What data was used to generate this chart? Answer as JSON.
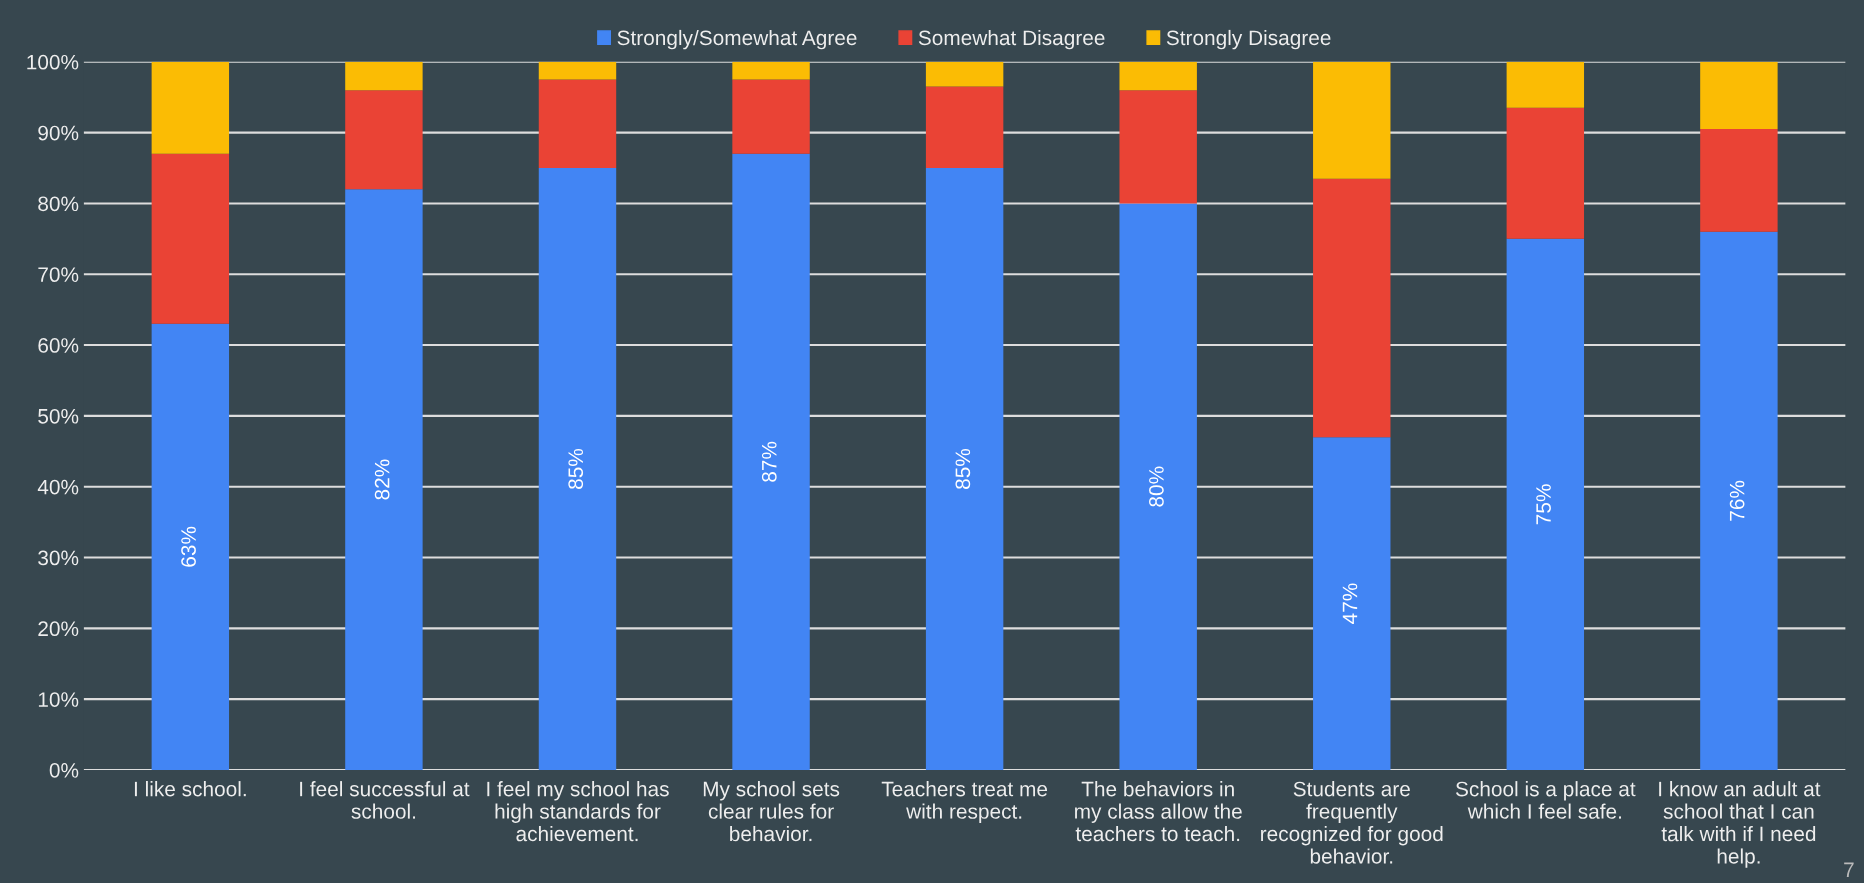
{
  "chart_data": {
    "type": "bar",
    "stacked": true,
    "categories": [
      "I like school.",
      "I feel successful at\nschool.",
      "I feel my school has\nhigh standards for\nachievement.",
      "My school sets\nclear rules for\nbehavior.",
      "Teachers treat me\nwith respect.",
      "The behaviors in\nmy class allow the\nteachers to teach.",
      "Students are\nfrequently\nrecognized for good\nbehavior.",
      "School is a place at\nwhich I feel safe.",
      "I know an adult at\nschool that I can\ntalk with if I need\nhelp."
    ],
    "series": [
      {
        "name": "Strongly/Somewhat Agree",
        "color": "#4285f4",
        "values": [
          63,
          82,
          85,
          87,
          85,
          80,
          47,
          75,
          76
        ],
        "value_labels": [
          "63%",
          "82%",
          "85%",
          "87%",
          "85%",
          "80%",
          "47%",
          "75%",
          "76%"
        ]
      },
      {
        "name": "Somewhat Disagree",
        "color": "#ea4335",
        "values": [
          24,
          14,
          12.5,
          10.5,
          11.5,
          16,
          36.5,
          18.5,
          14.5
        ]
      },
      {
        "name": "Strongly Disagree",
        "color": "#fbbc04",
        "values": [
          13,
          4,
          2.5,
          2.5,
          3.5,
          4,
          16.5,
          6.5,
          9.5
        ]
      }
    ],
    "ylim": [
      0,
      100
    ],
    "yticks": [
      {
        "value": 0,
        "label": "0%"
      },
      {
        "value": 10,
        "label": "10%"
      },
      {
        "value": 20,
        "label": "20%"
      },
      {
        "value": 30,
        "label": "30%"
      },
      {
        "value": 40,
        "label": "40%"
      },
      {
        "value": 50,
        "label": "50%"
      },
      {
        "value": 60,
        "label": "60%"
      },
      {
        "value": 70,
        "label": "70%"
      },
      {
        "value": 80,
        "label": "80%"
      },
      {
        "value": 90,
        "label": "90%"
      },
      {
        "value": 100,
        "label": "100%"
      }
    ],
    "grid": "y",
    "legend": "top",
    "annotations": [
      "7"
    ]
  }
}
